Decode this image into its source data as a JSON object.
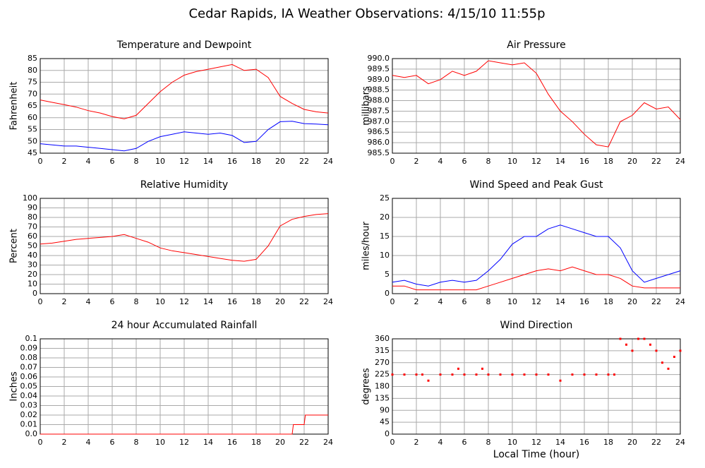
{
  "title": "Cedar Rapids, IA Weather Observations: 4/15/10 11:55p",
  "chart_data": [
    {
      "type": "line",
      "title": "Temperature and Dewpoint",
      "ylabel": "Fahrenheit",
      "grid": true,
      "xlim": [
        0,
        24
      ],
      "xticks": [
        0,
        2,
        4,
        6,
        8,
        10,
        12,
        14,
        16,
        18,
        20,
        22,
        24
      ],
      "ylim": [
        45,
        85
      ],
      "yticks": [
        45,
        50,
        55,
        60,
        65,
        70,
        75,
        80,
        85
      ],
      "x": [
        0,
        1,
        2,
        3,
        4,
        5,
        6,
        7,
        8,
        9,
        10,
        11,
        12,
        13,
        14,
        15,
        16,
        17,
        18,
        19,
        20,
        21,
        22,
        23,
        24
      ],
      "series": [
        {
          "color": "#ff0000",
          "values": [
            67.5,
            66.5,
            65.5,
            64.5,
            63,
            62,
            60.5,
            59.5,
            61,
            66,
            71,
            75,
            78,
            79.5,
            80.5,
            81.5,
            82.5,
            80,
            80.5,
            77,
            69,
            66,
            63.5,
            62.5,
            62
          ]
        },
        {
          "color": "#0000ff",
          "values": [
            49,
            48.5,
            48,
            48,
            47.5,
            47,
            46.5,
            46,
            47,
            50,
            52,
            53,
            54,
            53.5,
            53,
            53.5,
            52.5,
            49.5,
            50,
            55,
            58.3,
            58.5,
            57.5,
            57.3,
            57
          ]
        }
      ]
    },
    {
      "type": "line",
      "title": "Air Pressure",
      "ylabel": "millibars",
      "grid": true,
      "xlim": [
        0,
        24
      ],
      "xticks": [
        0,
        2,
        4,
        6,
        8,
        10,
        12,
        14,
        16,
        18,
        20,
        22,
        24
      ],
      "ylim": [
        985.5,
        990
      ],
      "yticks": [
        985.5,
        {
          "value": 986,
          "label": "986.0"
        },
        986.5,
        {
          "value": 987,
          "label": "987.0"
        },
        987.5,
        {
          "value": 988,
          "label": "988.0"
        },
        988.5,
        {
          "value": 989,
          "label": "989.0"
        },
        989.5,
        {
          "value": 990,
          "label": "990.0"
        }
      ],
      "x": [
        0,
        1,
        2,
        3,
        4,
        5,
        6,
        7,
        8,
        9,
        10,
        11,
        12,
        13,
        14,
        15,
        16,
        17,
        18,
        19,
        20,
        21,
        22,
        23,
        24
      ],
      "series": [
        {
          "color": "#ff0000",
          "values": [
            989.2,
            989.1,
            989.2,
            988.8,
            989,
            989.4,
            989.2,
            989.4,
            989.9,
            989.8,
            989.7,
            989.8,
            989.3,
            988.3,
            987.5,
            987,
            986.4,
            985.9,
            985.8,
            987,
            987.3,
            987.9,
            987.6,
            987.7,
            987.1
          ]
        }
      ]
    },
    {
      "type": "line",
      "title": "Relative Humidity",
      "ylabel": "Percent",
      "grid": true,
      "xlim": [
        0,
        24
      ],
      "xticks": [
        0,
        2,
        4,
        6,
        8,
        10,
        12,
        14,
        16,
        18,
        20,
        22,
        24
      ],
      "ylim": [
        0,
        100
      ],
      "yticks": [
        0,
        10,
        20,
        30,
        40,
        50,
        60,
        70,
        80,
        90,
        100
      ],
      "x": [
        0,
        1,
        2,
        3,
        4,
        5,
        6,
        7,
        8,
        9,
        10,
        11,
        12,
        13,
        14,
        15,
        16,
        17,
        18,
        19,
        20,
        21,
        22,
        23,
        24
      ],
      "series": [
        {
          "color": "#ff0000",
          "values": [
            52,
            53,
            55,
            57,
            58,
            59,
            60,
            62,
            58,
            54,
            48,
            45,
            43,
            41,
            39,
            37,
            35,
            34,
            36,
            50,
            71,
            78,
            81,
            83,
            84
          ]
        }
      ]
    },
    {
      "type": "line",
      "title": "Wind Speed and Peak Gust",
      "ylabel": "miles/hour",
      "grid": true,
      "xlim": [
        0,
        24
      ],
      "xticks": [
        0,
        2,
        4,
        6,
        8,
        10,
        12,
        14,
        16,
        18,
        20,
        22,
        24
      ],
      "ylim": [
        0,
        25
      ],
      "yticks": [
        0,
        5,
        10,
        15,
        20,
        25
      ],
      "x": [
        0,
        1,
        2,
        3,
        4,
        5,
        6,
        7,
        8,
        9,
        10,
        11,
        12,
        13,
        14,
        15,
        16,
        17,
        18,
        19,
        20,
        21,
        22,
        23,
        24
      ],
      "series": [
        {
          "color": "#0000ff",
          "values": [
            3,
            3.5,
            2.5,
            2,
            3,
            3.5,
            3,
            3.5,
            6,
            9,
            13,
            15,
            15,
            17,
            18,
            17,
            16,
            15,
            15,
            12,
            6,
            3,
            4,
            5,
            6
          ]
        },
        {
          "color": "#ff0000",
          "values": [
            2,
            2,
            1,
            1,
            1,
            1,
            1,
            1,
            2,
            3,
            4,
            5,
            6,
            6.5,
            6,
            7,
            6,
            5,
            5,
            4,
            2,
            1.5,
            1.5,
            1.5,
            1.5
          ]
        }
      ]
    },
    {
      "type": "line",
      "title": "24 hour Accumulated Rainfall",
      "ylabel": "Inches",
      "grid": true,
      "xlim": [
        0,
        24
      ],
      "xticks": [
        0,
        2,
        4,
        6,
        8,
        10,
        12,
        14,
        16,
        18,
        20,
        22,
        24
      ],
      "ylim": [
        0,
        0.1
      ],
      "yticks": [
        {
          "value": 0,
          "label": "0.0"
        },
        0.01,
        0.02,
        0.03,
        0.04,
        0.05,
        0.06,
        0.07,
        0.08,
        0.09,
        0.1
      ],
      "x": [
        0,
        21,
        21.1,
        22,
        22.1,
        24
      ],
      "series": [
        {
          "color": "#ff0000",
          "values": [
            0,
            0,
            0.01,
            0.01,
            0.02,
            0.02
          ]
        }
      ]
    },
    {
      "type": "scatter",
      "title": "Wind Direction",
      "ylabel": "degrees",
      "xlabel": "Local Time (hour)",
      "grid": true,
      "xlim": [
        0,
        24
      ],
      "xticks": [
        0,
        2,
        4,
        6,
        8,
        10,
        12,
        14,
        16,
        18,
        20,
        22,
        24
      ],
      "ylim": [
        0,
        360
      ],
      "yticks": [
        0,
        45,
        90,
        135,
        180,
        225,
        270,
        315,
        360
      ],
      "x": [
        0,
        1,
        2,
        2.5,
        3,
        4,
        5,
        5.5,
        6,
        7,
        7.5,
        8,
        9,
        10,
        11,
        12,
        13,
        14,
        15,
        16,
        17,
        18,
        18.5,
        19,
        19.5,
        20,
        20.5,
        21,
        21.5,
        22,
        22.5,
        23,
        23.5,
        24
      ],
      "series": [
        {
          "color": "#ff0000",
          "values": [
            225,
            225,
            225,
            225,
            202,
            225,
            225,
            247,
            225,
            225,
            247,
            225,
            225,
            225,
            225,
            225,
            225,
            202,
            225,
            225,
            225,
            225,
            225,
            360,
            338,
            315,
            360,
            360,
            338,
            315,
            270,
            247,
            292,
            315
          ]
        }
      ]
    }
  ]
}
